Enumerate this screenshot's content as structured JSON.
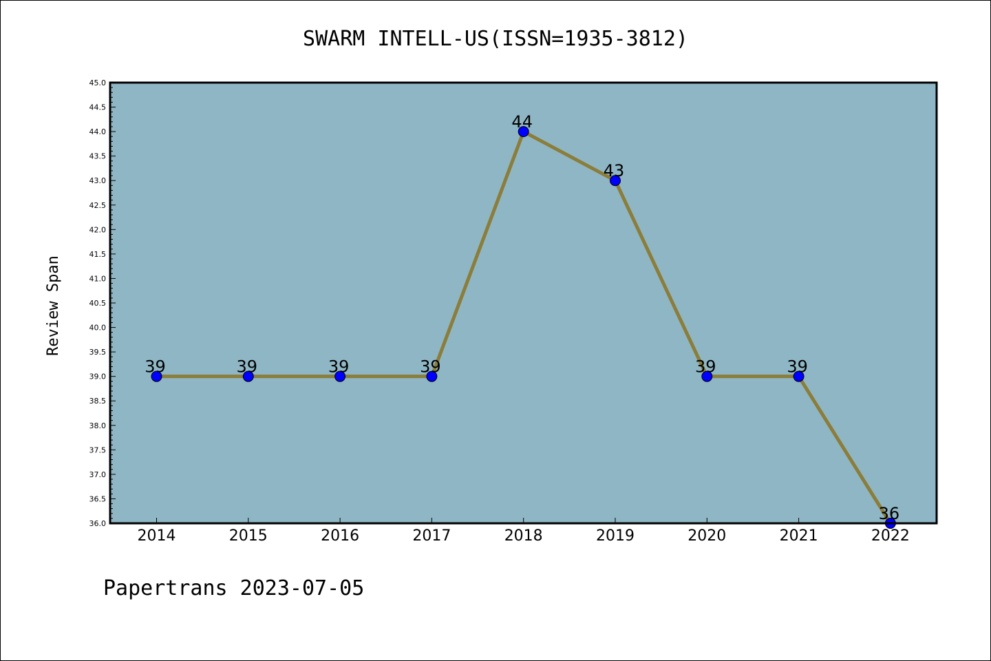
{
  "chart_data": {
    "type": "line",
    "title": "SWARM INTELL-US(ISSN=1935-3812)",
    "xlabel": "",
    "ylabel": "Review Span",
    "categories": [
      "2014",
      "2015",
      "2016",
      "2017",
      "2018",
      "2019",
      "2020",
      "2021",
      "2022"
    ],
    "series": [
      {
        "values": [
          39,
          39,
          39,
          39,
          44,
          43,
          39,
          39,
          36
        ]
      }
    ],
    "data_labels": [
      "39",
      "39",
      "39",
      "39",
      "44",
      "43",
      "39",
      "39",
      "36"
    ],
    "yticks": [
      "36.0",
      "36.5",
      "37.0",
      "37.5",
      "38.0",
      "38.5",
      "39.0",
      "39.5",
      "40.0",
      "40.5",
      "41.0",
      "41.5",
      "42.0",
      "42.5",
      "43.0",
      "43.5",
      "44.0",
      "44.5",
      "45.0"
    ],
    "ylim": [
      36,
      45
    ],
    "grid": false,
    "colors": {
      "plot_background": "#8fb6c4",
      "line": "#8b7d3a",
      "marker": "#0000ff"
    }
  },
  "footer": "Papertrans 2023-07-05"
}
